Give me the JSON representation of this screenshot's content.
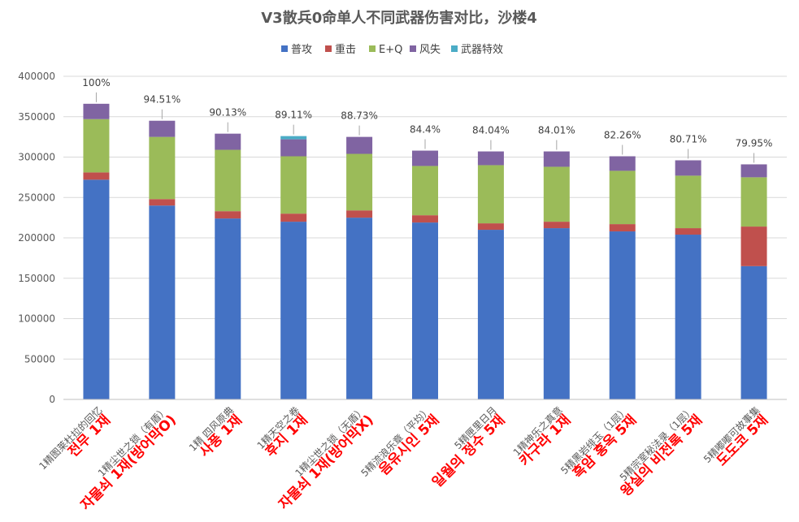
{
  "chart_data": {
    "type": "bar",
    "stacked": true,
    "title": "V3散兵0命单人不同武器伤害对比，沙楼4",
    "xlabel": "",
    "ylabel": "",
    "ylim": [
      0,
      400000
    ],
    "yticks": [
      0,
      50000,
      100000,
      150000,
      200000,
      250000,
      300000,
      350000,
      400000
    ],
    "grid": true,
    "legend_position": "top",
    "categories": [
      "1精图莱杜拉的回忆",
      "1精尘世之锁（有盾）",
      "1精 四风原典",
      "1精天空之卷",
      "1精尘世之锁（无盾）",
      "5精流浪乐章（平均）",
      "5精匣里日月",
      "1精神乐之真意",
      "5精黑岩绯玉（1层）",
      "5精宗室秘法录（1层）",
      "5精嘟嘟可故事集"
    ],
    "category_annotations": [
      "전무 1재",
      "자물쇠 1재(방어막O)",
      "사풍 1재",
      "후지 1재",
      "자물쇠 1재(방어막X)",
      "음유시인 5재",
      "일월의 정수 5재",
      "카구라 1재",
      "흑암 홍옥 5재",
      "왕실의 비전록 5재",
      "도도코 5재"
    ],
    "percent_labels": [
      "100%",
      "94.51%",
      "90.13%",
      "89.11%",
      "88.73%",
      "84.4%",
      "84.04%",
      "84.01%",
      "82.26%",
      "80.71%",
      "79.95%"
    ],
    "series": [
      {
        "name": "普攻",
        "color": "#4472c4",
        "values": [
          272000,
          240000,
          224000,
          220000,
          225000,
          219000,
          210000,
          212000,
          208000,
          204000,
          165000
        ]
      },
      {
        "name": "重击",
        "color": "#c0504d",
        "values": [
          9000,
          8000,
          9000,
          10000,
          9000,
          9000,
          8000,
          8000,
          9000,
          8000,
          49000
        ]
      },
      {
        "name": "E+Q",
        "color": "#9bbb59",
        "values": [
          66000,
          77000,
          76000,
          71000,
          70000,
          61000,
          72000,
          68000,
          66000,
          65000,
          61000
        ]
      },
      {
        "name": "风失",
        "color": "#8064a2",
        "values": [
          19000,
          20000,
          20000,
          21000,
          21000,
          19000,
          17000,
          19000,
          18000,
          19000,
          16000
        ]
      },
      {
        "name": "武器特效",
        "color": "#4bacc6",
        "values": [
          0,
          0,
          0,
          4000,
          0,
          0,
          0,
          0,
          0,
          0,
          0
        ]
      }
    ]
  }
}
